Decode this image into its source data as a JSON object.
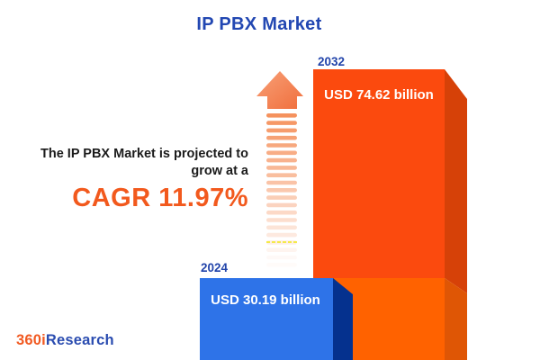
{
  "title": "IP PBX Market",
  "projection": {
    "line1": "The IP PBX Market is projected to",
    "line2": "grow at a",
    "cagr": "CAGR 11.97%"
  },
  "logo": {
    "prefix": "360i",
    "suffix": "Research"
  },
  "chart_data": {
    "type": "bar",
    "title": "IP PBX Market",
    "categories": [
      "2024",
      "2032"
    ],
    "values": [
      30.19,
      74.62
    ],
    "unit": "USD billion",
    "value_labels": [
      "USD 30.19 billion",
      "USD 74.62 billion"
    ],
    "cagr_percent": 11.97,
    "annotation": "The IP PBX Market is projected to grow at a CAGR 11.97%",
    "legend": "none",
    "colors": {
      "bar_2024_front": "#2e73e8",
      "bar_2024_side": "#05318e",
      "bar_2032_front_upper": "#fb4a0e",
      "bar_2032_front_lower": "#ff6200",
      "bar_2032_side_upper": "#d64108",
      "bar_2032_side_lower": "#df5605",
      "accent_orange": "#f2591d",
      "accent_blue": "#2247b2",
      "growth_arrow": "#f4835c"
    }
  }
}
